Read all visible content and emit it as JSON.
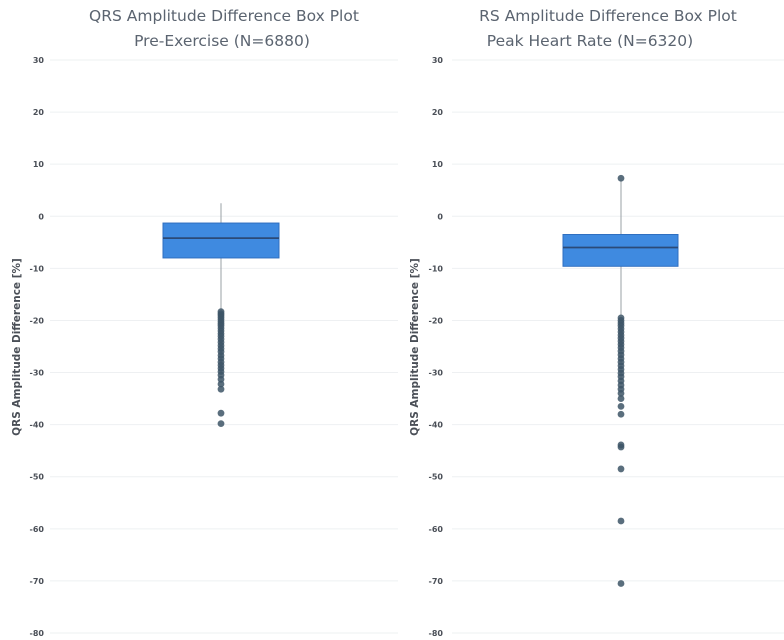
{
  "chart_data": [
    {
      "type": "box",
      "title_line1": "QRS Amplitude Difference Box Plot",
      "title_line2": "Pre-Exercise (N=6880)",
      "ylabel": "QRS Amplitude Difference [%]",
      "ylim": [
        -80,
        30
      ],
      "yticks": [
        "30",
        "20",
        "10",
        "0",
        "-10",
        "-20",
        "-30",
        "-40",
        "-50",
        "-60",
        "-70",
        "-80"
      ],
      "grid": true,
      "box_color": "#3f8ae0",
      "median_color": "#2b4a78",
      "whisker_high": 2.5,
      "q3": -1.3,
      "median": -4.2,
      "q1": -8.0,
      "whisker_low": -18.0,
      "outliers": [
        -18.3,
        -18.7,
        -19.0,
        -19.4,
        -19.8,
        -20.2,
        -20.6,
        -21.0,
        -21.5,
        -22.0,
        -22.5,
        -23.0,
        -23.6,
        -24.2,
        -24.8,
        -25.4,
        -26.0,
        -26.7,
        -27.3,
        -28.0,
        -28.6,
        -29.2,
        -29.8,
        -30.5,
        -31.3,
        -32.2,
        -33.2,
        -37.8,
        -39.8
      ]
    },
    {
      "type": "box",
      "title_line1": "RS Amplitude Difference Box Plot",
      "title_line2": "Peak Heart Rate (N=6320)",
      "ylabel": "QRS Amplitude Difference [%]",
      "ylim": [
        -80,
        30
      ],
      "yticks": [
        "30",
        "20",
        "10",
        "0",
        "-10",
        "-20",
        "-30",
        "-40",
        "-50",
        "-60",
        "-70",
        "-80"
      ],
      "grid": true,
      "box_color": "#3f8ae0",
      "median_color": "#2b4a78",
      "whisker_high": 7.0,
      "q3": -3.5,
      "median": -6.0,
      "q1": -9.6,
      "whisker_low": -19.0,
      "outliers": [
        7.3,
        -19.5,
        -20.0,
        -20.5,
        -21.0,
        -21.6,
        -22.2,
        -22.8,
        -23.4,
        -24.0,
        -24.6,
        -25.2,
        -25.9,
        -26.6,
        -27.3,
        -28.0,
        -28.7,
        -29.4,
        -30.1,
        -30.8,
        -31.6,
        -32.4,
        -33.2,
        -34.0,
        -35.0,
        -36.5,
        -38.0,
        -43.9,
        -44.3,
        -48.5,
        -58.5,
        -70.5
      ]
    }
  ]
}
